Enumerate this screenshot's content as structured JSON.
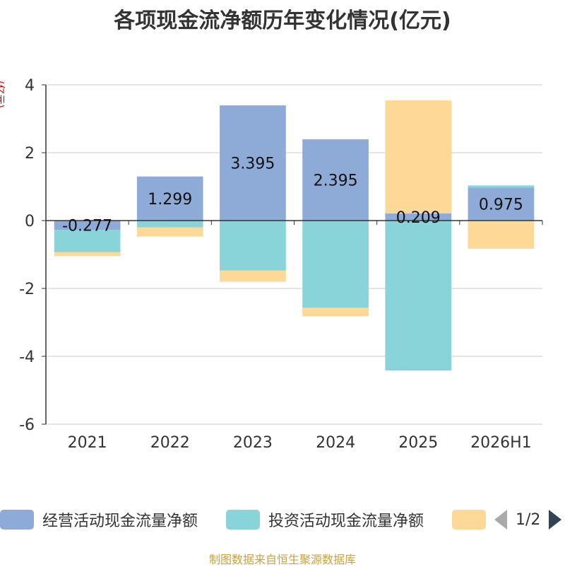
{
  "title": "各项现金流净额历年变化情况(亿元)",
  "y_unit_label": "(亿元)",
  "source": "制图数据来自恒生聚源数据库",
  "legend": {
    "items": [
      {
        "label": "经营活动现金流量净额",
        "color": "#8eabd8"
      },
      {
        "label": "投资活动现金流量净额",
        "color": "#88d4d8"
      },
      {
        "label": "",
        "color": "#fed897"
      }
    ],
    "page": "1/2"
  },
  "chart_data": {
    "type": "bar",
    "stacked": true,
    "categories": [
      "2021",
      "2022",
      "2023",
      "2024",
      "2025",
      "2026H1"
    ],
    "series": [
      {
        "name": "经营活动现金流量净额",
        "color": "#8eabd8",
        "values": [
          -0.277,
          1.299,
          3.395,
          2.395,
          0.209,
          0.975
        ],
        "labels": [
          "-0.277",
          "1.299",
          "3.395",
          "2.395",
          "0.209",
          "0.975"
        ]
      },
      {
        "name": "投资活动现金流量净额",
        "color": "#88d4d8",
        "values": [
          -0.65,
          -0.2,
          -1.47,
          -2.57,
          -4.42,
          0.06
        ]
      },
      {
        "color": "#fed897",
        "values": [
          -0.12,
          -0.27,
          -0.33,
          -0.25,
          3.33,
          -0.83
        ]
      }
    ],
    "ylim": [
      -6,
      4
    ],
    "yticks": [
      -6,
      -4,
      -2,
      0,
      2,
      4
    ],
    "grid": true,
    "legend_position": "bottom"
  }
}
